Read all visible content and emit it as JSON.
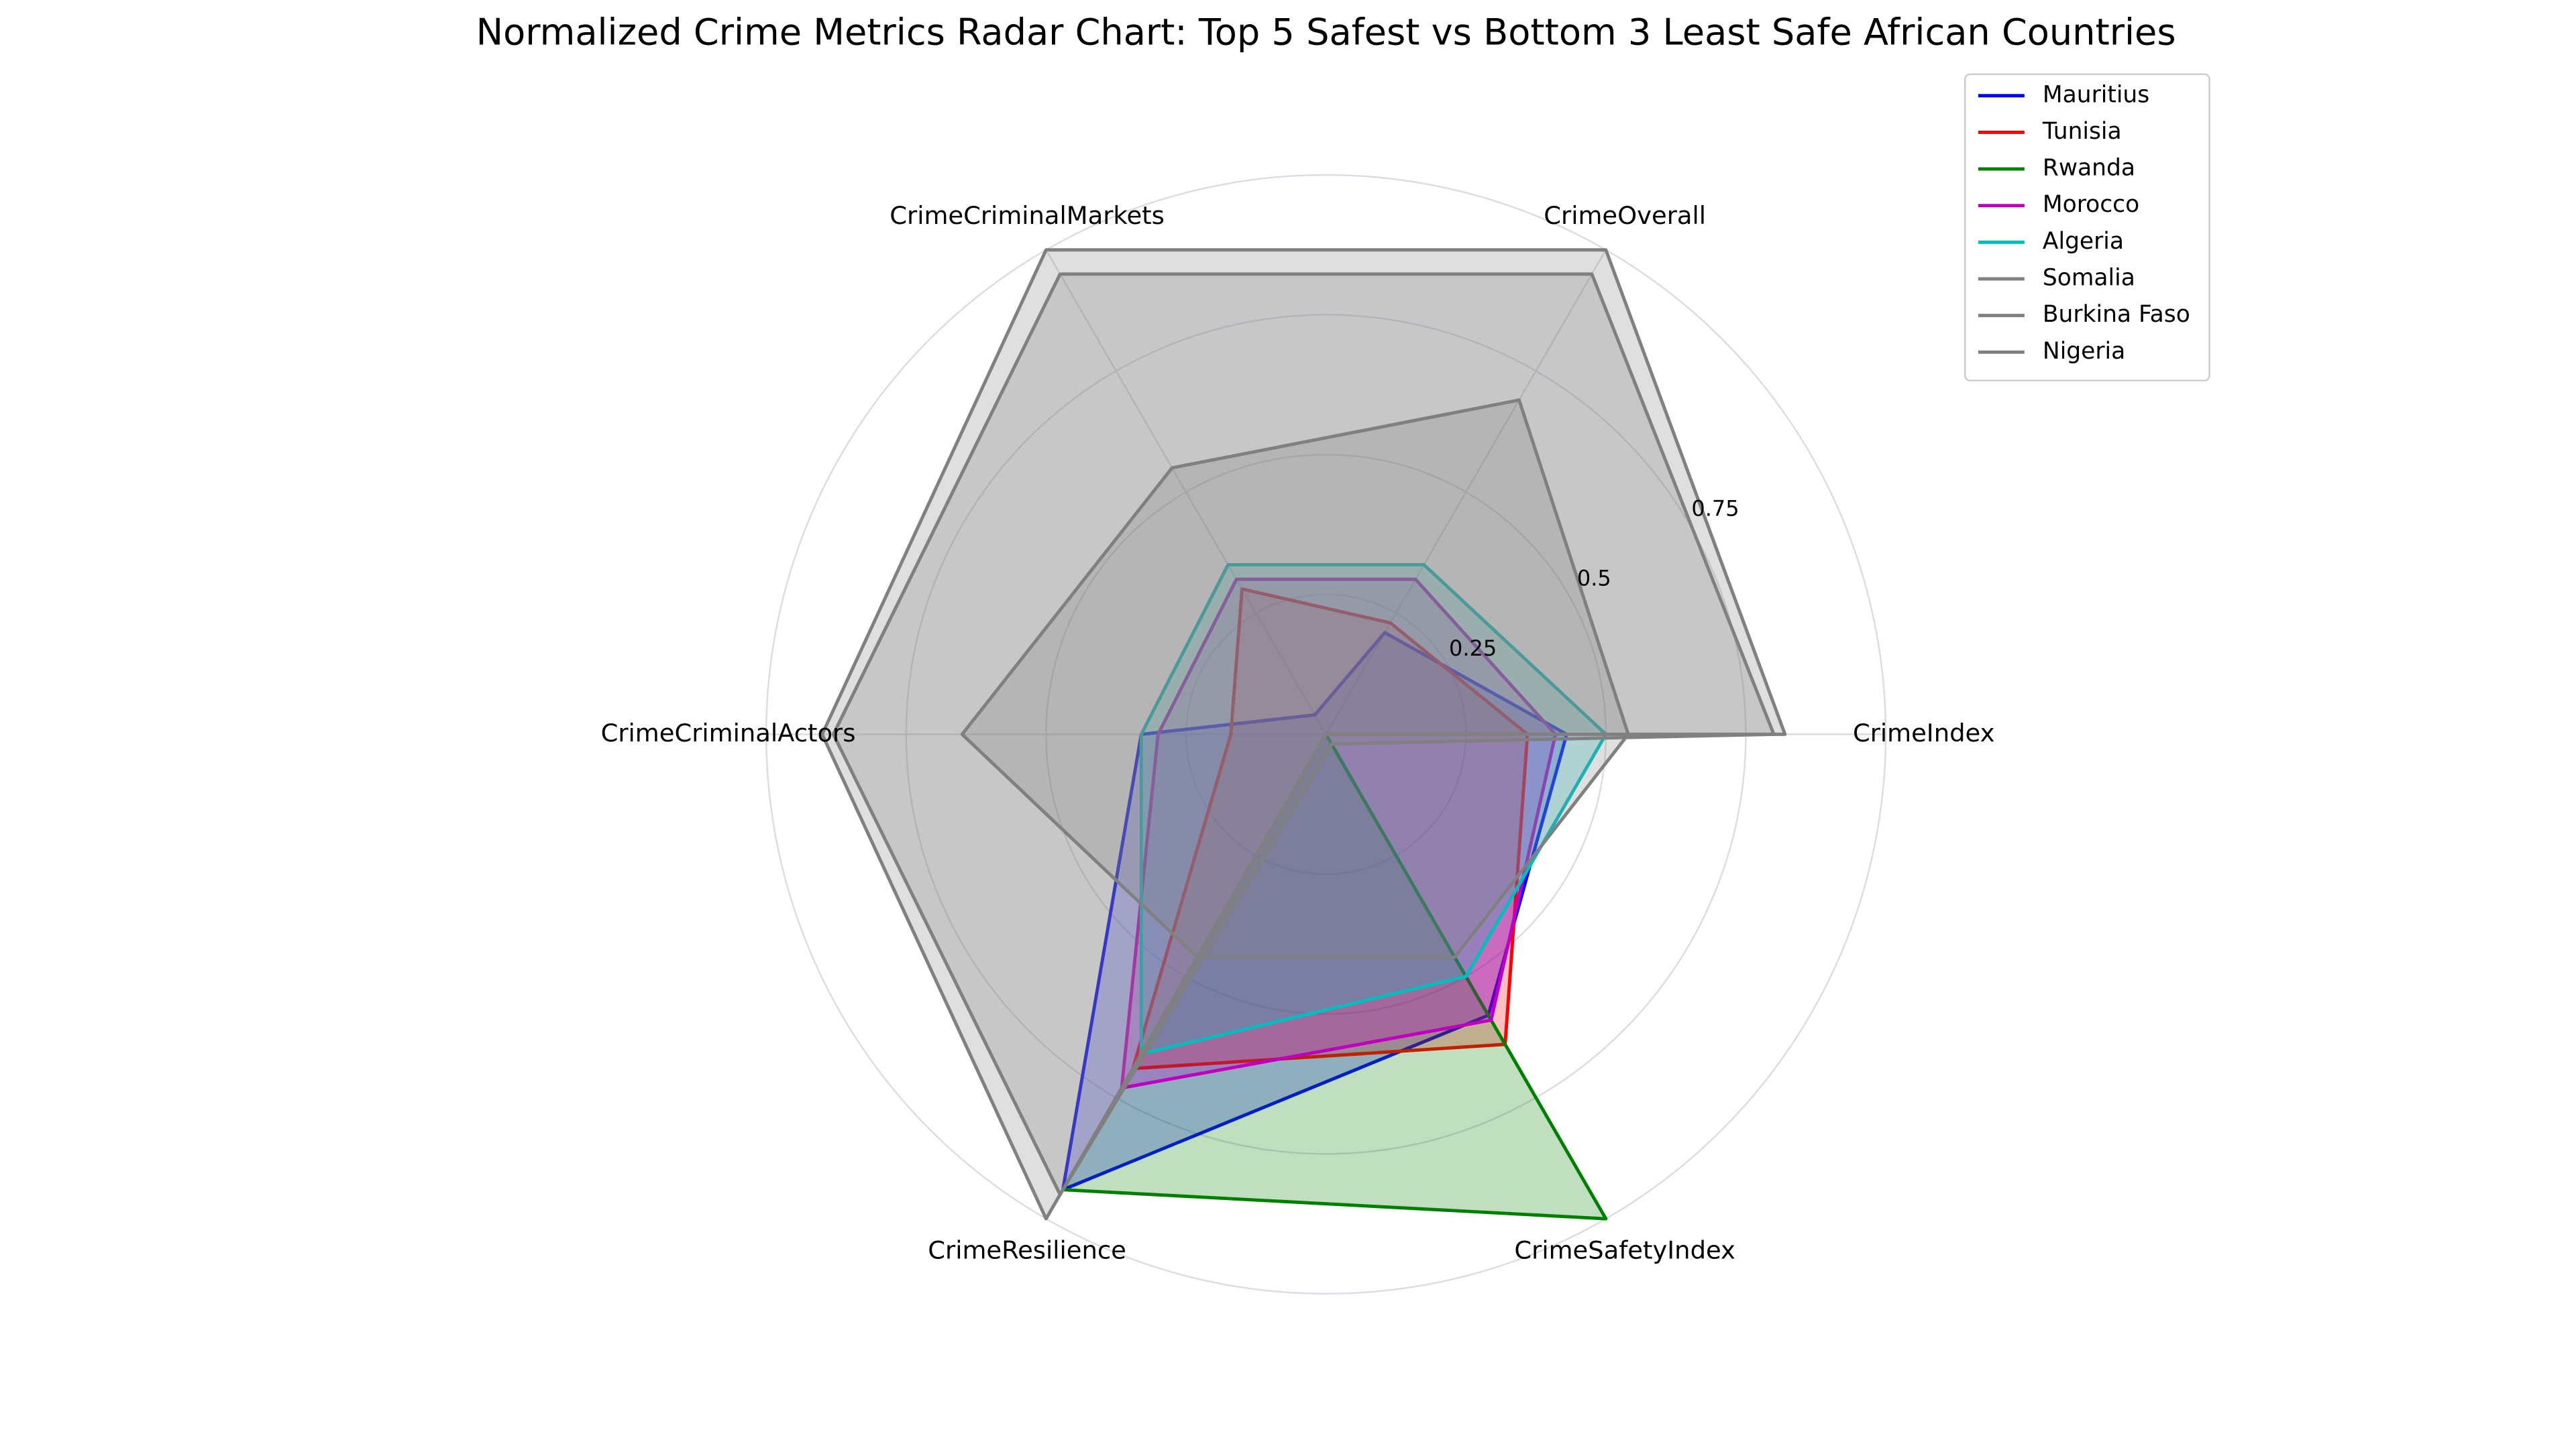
{
  "chart_data": {
    "type": "radar",
    "title": "Normalized Crime Metrics Radar Chart: Top 5 Safest vs Bottom 3 Least Safe African Countries",
    "title_color": "#008080",
    "categories": [
      "CrimeIndex",
      "CrimeOverall",
      "CrimeCriminalMarkets",
      "CrimeCriminalActors",
      "CrimeResilience",
      "CrimeSafetyIndex"
    ],
    "ylim": [
      0,
      1
    ],
    "yticks": [
      0.25,
      0.5,
      0.75
    ],
    "grid": true,
    "legend": "upper right",
    "series": [
      {
        "name": "Mauritius",
        "color": "#0000ff",
        "values": [
          0.43,
          0.21,
          0.04,
          0.33,
          0.94,
          0.58
        ]
      },
      {
        "name": "Tunisia",
        "color": "#ff0000",
        "values": [
          0.36,
          0.23,
          0.3,
          0.17,
          0.69,
          0.64
        ]
      },
      {
        "name": "Rwanda",
        "color": "#008000",
        "values": [
          0,
          0,
          0,
          0,
          0.94,
          1.0
        ]
      },
      {
        "name": "Morocco",
        "color": "#bf00bf",
        "values": [
          0.41,
          0.32,
          0.32,
          0.3,
          0.73,
          0.59
        ]
      },
      {
        "name": "Algeria",
        "color": "#00bfbf",
        "values": [
          0.5,
          0.35,
          0.35,
          0.33,
          0.66,
          0.5
        ]
      },
      {
        "name": "Somalia",
        "color": "#808080",
        "values": [
          0.82,
          1.0,
          1.0,
          0.9,
          1.0,
          0
        ]
      },
      {
        "name": "Burkina Faso",
        "color": "#808080",
        "values": [
          0.54,
          0.69,
          0.55,
          0.65,
          0.46,
          0.46
        ]
      },
      {
        "name": "Nigeria",
        "color": "#808080",
        "values": [
          0.8,
          0.95,
          0.95,
          0.88,
          0.95,
          0.02
        ]
      }
    ]
  }
}
